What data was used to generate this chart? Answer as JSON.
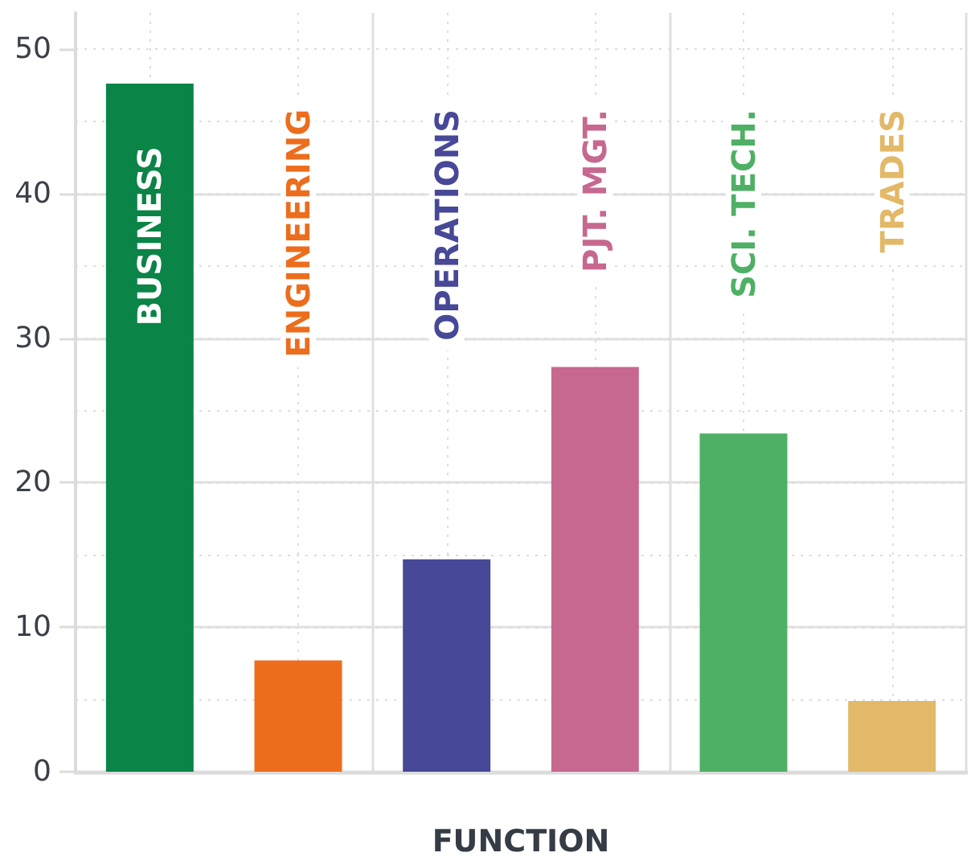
{
  "chart_data": {
    "type": "bar",
    "xlabel": "FUNCTION",
    "categories": [
      "BUSINESS",
      "ENGINEERING",
      "OPERATIONS",
      "PJT. MGT.",
      "SCI. TECH.",
      "TRADES"
    ],
    "values": [
      47.6,
      7.7,
      14.7,
      28.0,
      23.4,
      4.9
    ],
    "colors": [
      "#0a8447",
      "#ec6d1c",
      "#474897",
      "#c66890",
      "#4fb065",
      "#e2b968"
    ],
    "ylim": [
      0,
      52.5
    ],
    "yticks": [
      0,
      10,
      20,
      30,
      40,
      50
    ],
    "grid": true
  }
}
